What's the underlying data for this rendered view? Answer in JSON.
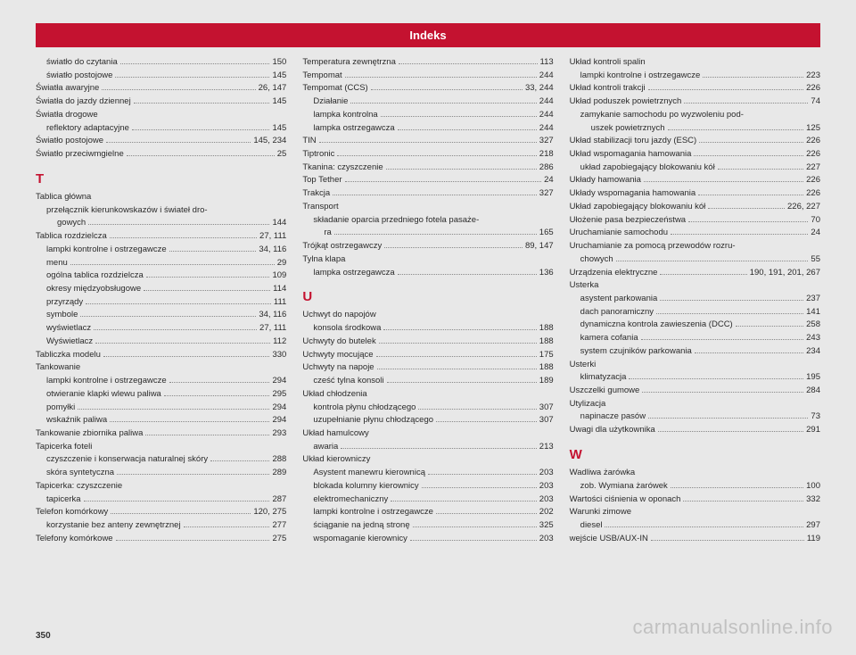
{
  "header": "Indeks",
  "pagenum": "350",
  "watermark": "carmanualsonline.info",
  "col1": [
    {
      "t": "e",
      "sub": 1,
      "label": "światło do czytania",
      "page": "150"
    },
    {
      "t": "e",
      "sub": 1,
      "label": "światło postojowe",
      "page": "145"
    },
    {
      "t": "e",
      "sub": 0,
      "label": "Światła awaryjne",
      "page": "26, 147"
    },
    {
      "t": "e",
      "sub": 0,
      "label": "Światła do jazdy dziennej",
      "page": "145"
    },
    {
      "t": "h",
      "sub": 0,
      "label": "Światła drogowe"
    },
    {
      "t": "e",
      "sub": 1,
      "label": "reflektory adaptacyjne",
      "page": "145"
    },
    {
      "t": "e",
      "sub": 0,
      "label": "Światło postojowe",
      "page": "145, 234"
    },
    {
      "t": "e",
      "sub": 0,
      "label": "Światło przeciwmgielne",
      "page": "25"
    },
    {
      "t": "s",
      "label": "T"
    },
    {
      "t": "h",
      "sub": 0,
      "label": "Tablica główna"
    },
    {
      "t": "h",
      "sub": 1,
      "label": "przełącznik kierunkowskazów i świateł dro-"
    },
    {
      "t": "e",
      "sub": 2,
      "label": "gowych",
      "page": "144"
    },
    {
      "t": "e",
      "sub": 0,
      "label": "Tablica rozdzielcza",
      "page": "27, 111"
    },
    {
      "t": "e",
      "sub": 1,
      "label": "lampki kontrolne i ostrzegawcze",
      "page": "34, 116"
    },
    {
      "t": "e",
      "sub": 1,
      "label": "menu",
      "page": "29"
    },
    {
      "t": "e",
      "sub": 1,
      "label": "ogólna tablica rozdzielcza",
      "page": "109"
    },
    {
      "t": "e",
      "sub": 1,
      "label": "okresy międzyobsługowe",
      "page": "114"
    },
    {
      "t": "e",
      "sub": 1,
      "label": "przyrządy",
      "page": "111"
    },
    {
      "t": "e",
      "sub": 1,
      "label": "symbole",
      "page": "34, 116"
    },
    {
      "t": "e",
      "sub": 1,
      "label": "wyświetlacz",
      "page": "27, 111"
    },
    {
      "t": "e",
      "sub": 1,
      "label": "Wyświetlacz",
      "page": "112"
    },
    {
      "t": "e",
      "sub": 0,
      "label": "Tabliczka modelu",
      "page": "330"
    },
    {
      "t": "h",
      "sub": 0,
      "label": "Tankowanie"
    },
    {
      "t": "e",
      "sub": 1,
      "label": "lampki kontrolne i ostrzegawcze",
      "page": "294"
    },
    {
      "t": "e",
      "sub": 1,
      "label": "otwieranie klapki wlewu paliwa",
      "page": "295"
    },
    {
      "t": "e",
      "sub": 1,
      "label": "pomyłki",
      "page": "294"
    },
    {
      "t": "e",
      "sub": 1,
      "label": "wskaźnik paliwa",
      "page": "294"
    },
    {
      "t": "e",
      "sub": 0,
      "label": "Tankowanie zbiornika paliwa",
      "page": "293"
    },
    {
      "t": "h",
      "sub": 0,
      "label": "Tapicerka foteli"
    },
    {
      "t": "e",
      "sub": 1,
      "label": "czyszczenie i konserwacja naturalnej skóry",
      "page": "288"
    },
    {
      "t": "e",
      "sub": 1,
      "label": "skóra syntetyczna",
      "page": "289"
    },
    {
      "t": "h",
      "sub": 0,
      "label": "Tapicerka: czyszczenie"
    },
    {
      "t": "e",
      "sub": 1,
      "label": "tapicerka",
      "page": "287"
    },
    {
      "t": "e",
      "sub": 0,
      "label": "Telefon komórkowy",
      "page": "120, 275"
    },
    {
      "t": "e",
      "sub": 1,
      "label": "korzystanie bez anteny zewnętrznej",
      "page": "277"
    },
    {
      "t": "e",
      "sub": 0,
      "label": "Telefony komórkowe",
      "page": "275"
    }
  ],
  "col2": [
    {
      "t": "e",
      "sub": 0,
      "label": "Temperatura zewnętrzna",
      "page": "113"
    },
    {
      "t": "e",
      "sub": 0,
      "label": "Tempomat",
      "page": "244"
    },
    {
      "t": "e",
      "sub": 0,
      "label": "Tempomat (CCS)",
      "page": "33, 244"
    },
    {
      "t": "e",
      "sub": 1,
      "label": "Działanie",
      "page": "244"
    },
    {
      "t": "e",
      "sub": 1,
      "label": "lampka kontrolna",
      "page": "244"
    },
    {
      "t": "e",
      "sub": 1,
      "label": "lampka ostrzegawcza",
      "page": "244"
    },
    {
      "t": "e",
      "sub": 0,
      "label": "TIN",
      "page": "327"
    },
    {
      "t": "e",
      "sub": 0,
      "label": "Tiptronic",
      "page": "218"
    },
    {
      "t": "e",
      "sub": 0,
      "label": "Tkanina: czyszczenie",
      "page": "286"
    },
    {
      "t": "e",
      "sub": 0,
      "label": "Top Tether",
      "page": "24"
    },
    {
      "t": "e",
      "sub": 0,
      "label": "Trakcja",
      "page": "327"
    },
    {
      "t": "h",
      "sub": 0,
      "label": "Transport"
    },
    {
      "t": "h",
      "sub": 1,
      "label": "składanie oparcia przedniego fotela pasaże-"
    },
    {
      "t": "e",
      "sub": 2,
      "label": "ra",
      "page": "165"
    },
    {
      "t": "e",
      "sub": 0,
      "label": "Trójkąt ostrzegawczy",
      "page": "89, 147"
    },
    {
      "t": "h",
      "sub": 0,
      "label": "Tylna klapa"
    },
    {
      "t": "e",
      "sub": 1,
      "label": "lampka ostrzegawcza",
      "page": "136"
    },
    {
      "t": "s",
      "label": "U"
    },
    {
      "t": "h",
      "sub": 0,
      "label": "Uchwyt do napojów"
    },
    {
      "t": "e",
      "sub": 1,
      "label": "konsola środkowa",
      "page": "188"
    },
    {
      "t": "e",
      "sub": 0,
      "label": "Uchwyty do butelek",
      "page": "188"
    },
    {
      "t": "e",
      "sub": 0,
      "label": "Uchwyty mocujące",
      "page": "175"
    },
    {
      "t": "e",
      "sub": 0,
      "label": "Uchwyty na napoje",
      "page": "188"
    },
    {
      "t": "e",
      "sub": 1,
      "label": "cześć tylna konsoli",
      "page": "189"
    },
    {
      "t": "h",
      "sub": 0,
      "label": "Układ chłodzenia"
    },
    {
      "t": "e",
      "sub": 1,
      "label": "kontrola płynu chłodzącego",
      "page": "307"
    },
    {
      "t": "e",
      "sub": 1,
      "label": "uzupełnianie płynu chłodzącego",
      "page": "307"
    },
    {
      "t": "h",
      "sub": 0,
      "label": "Układ hamulcowy"
    },
    {
      "t": "e",
      "sub": 1,
      "label": "awaria",
      "page": "213"
    },
    {
      "t": "h",
      "sub": 0,
      "label": "Układ kierowniczy"
    },
    {
      "t": "e",
      "sub": 1,
      "label": "Asystent manewru kierownicą",
      "page": "203"
    },
    {
      "t": "e",
      "sub": 1,
      "label": "blokada kolumny kierownicy",
      "page": "203"
    },
    {
      "t": "e",
      "sub": 1,
      "label": "elektromechaniczny",
      "page": "203"
    },
    {
      "t": "e",
      "sub": 1,
      "label": "lampki kontrolne i ostrzegawcze",
      "page": "202"
    },
    {
      "t": "e",
      "sub": 1,
      "label": "ściąganie na jedną stronę",
      "page": "325"
    },
    {
      "t": "e",
      "sub": 1,
      "label": "wspomaganie kierownicy",
      "page": "203"
    }
  ],
  "col3": [
    {
      "t": "h",
      "sub": 0,
      "label": "Układ kontroli spalin"
    },
    {
      "t": "e",
      "sub": 1,
      "label": "lampki kontrolne i ostrzegawcze",
      "page": "223"
    },
    {
      "t": "e",
      "sub": 0,
      "label": "Układ kontroli trakcji",
      "page": "226"
    },
    {
      "t": "e",
      "sub": 0,
      "label": "Układ poduszek powietrznych",
      "page": "74"
    },
    {
      "t": "h",
      "sub": 1,
      "label": "zamykanie samochodu po wyzwoleniu pod-"
    },
    {
      "t": "e",
      "sub": 2,
      "label": "uszek powietrznych",
      "page": "125"
    },
    {
      "t": "e",
      "sub": 0,
      "label": "Układ stabilizacji toru jazdy (ESC)",
      "page": "226"
    },
    {
      "t": "e",
      "sub": 0,
      "label": "Układ wspomagania hamowania",
      "page": "226"
    },
    {
      "t": "e",
      "sub": 1,
      "label": "układ zapobiegający blokowaniu kół",
      "page": "227"
    },
    {
      "t": "e",
      "sub": 0,
      "label": "Układy hamowania",
      "page": "226"
    },
    {
      "t": "e",
      "sub": 0,
      "label": "Układy wspomagania hamowania",
      "page": "226"
    },
    {
      "t": "e",
      "sub": 0,
      "label": "Układ zapobiegający blokowaniu kół",
      "page": "226, 227"
    },
    {
      "t": "e",
      "sub": 0,
      "label": "Ułożenie pasa bezpieczeństwa",
      "page": "70"
    },
    {
      "t": "e",
      "sub": 0,
      "label": "Uruchamianie samochodu",
      "page": "24"
    },
    {
      "t": "h",
      "sub": 0,
      "label": "Uruchamianie za pomocą przewodów rozru-"
    },
    {
      "t": "e",
      "sub": 1,
      "label": "chowych",
      "page": "55"
    },
    {
      "t": "e",
      "sub": 0,
      "label": "Urządzenia elektryczne",
      "page": "190, 191, 201, 267"
    },
    {
      "t": "h",
      "sub": 0,
      "label": "Usterka"
    },
    {
      "t": "e",
      "sub": 1,
      "label": "asystent parkowania",
      "page": "237"
    },
    {
      "t": "e",
      "sub": 1,
      "label": "dach panoramiczny",
      "page": "141"
    },
    {
      "t": "e",
      "sub": 1,
      "label": "dynamiczna kontrola zawieszenia (DCC)",
      "page": "258"
    },
    {
      "t": "e",
      "sub": 1,
      "label": "kamera cofania",
      "page": "243"
    },
    {
      "t": "e",
      "sub": 1,
      "label": "system czujników parkowania",
      "page": "234"
    },
    {
      "t": "h",
      "sub": 0,
      "label": "Usterki"
    },
    {
      "t": "e",
      "sub": 1,
      "label": "klimatyzacja",
      "page": "195"
    },
    {
      "t": "e",
      "sub": 0,
      "label": "Uszczelki gumowe",
      "page": "284"
    },
    {
      "t": "h",
      "sub": 0,
      "label": "Utylizacja"
    },
    {
      "t": "e",
      "sub": 1,
      "label": "napinacze pasów",
      "page": "73"
    },
    {
      "t": "e",
      "sub": 0,
      "label": "Uwagi dla użytkownika",
      "page": "291"
    },
    {
      "t": "s",
      "label": "W"
    },
    {
      "t": "h",
      "sub": 0,
      "label": "Wadliwa żarówka"
    },
    {
      "t": "e",
      "sub": 1,
      "label": "zob. Wymiana żarówek",
      "page": "100"
    },
    {
      "t": "e",
      "sub": 0,
      "label": "Wartości ciśnienia w oponach",
      "page": "332"
    },
    {
      "t": "h",
      "sub": 0,
      "label": "Warunki zimowe"
    },
    {
      "t": "e",
      "sub": 1,
      "label": "diesel",
      "page": "297"
    },
    {
      "t": "e",
      "sub": 0,
      "label": "wejście USB/AUX-IN",
      "page": "119"
    }
  ]
}
